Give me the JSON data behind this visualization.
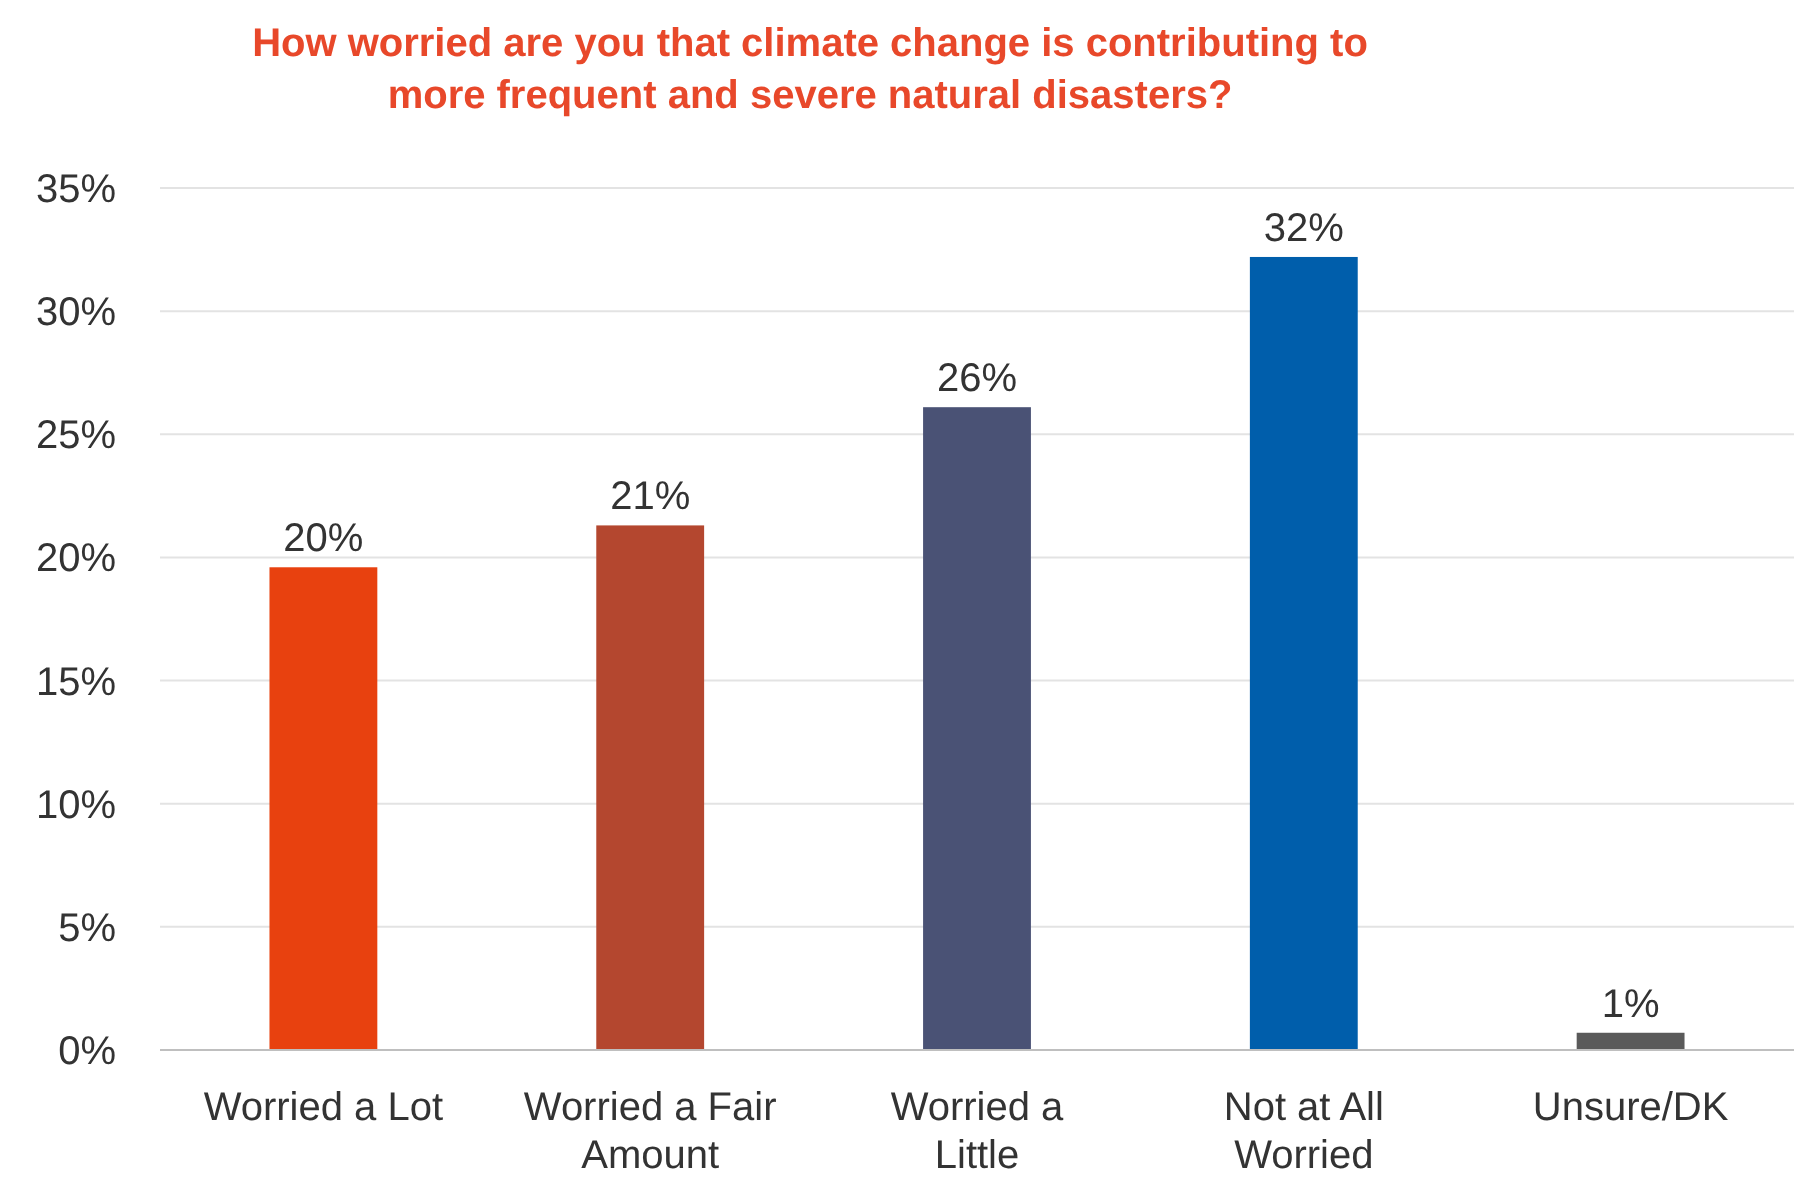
{
  "chart_data": {
    "type": "bar",
    "title": "How worried are you that climate change is contributing to more frequent and severe natural disasters?",
    "categories": [
      "Worried a Lot",
      "Worried a Fair Amount",
      "Worried a Little",
      "Not at All Worried",
      "Unsure/DK"
    ],
    "values": [
      19.6,
      21.3,
      26.1,
      32.2,
      0.7
    ],
    "value_labels": [
      "20%",
      "21%",
      "26%",
      "32%",
      "1%"
    ],
    "colors": [
      "#e8410f",
      "#b4472f",
      "#4a5275",
      "#005eab",
      "#5a5a5a"
    ],
    "ylim": [
      0,
      35
    ],
    "yticks": [
      {
        "value": 0,
        "label": "0%"
      },
      {
        "value": 5,
        "label": "5%"
      },
      {
        "value": 10,
        "label": "10%"
      },
      {
        "value": 15,
        "label": "15%"
      },
      {
        "value": 20,
        "label": "20%"
      },
      {
        "value": 25,
        "label": "25%"
      },
      {
        "value": 30,
        "label": "30%"
      },
      {
        "value": 35,
        "label": "35%"
      }
    ],
    "grid": "y"
  }
}
